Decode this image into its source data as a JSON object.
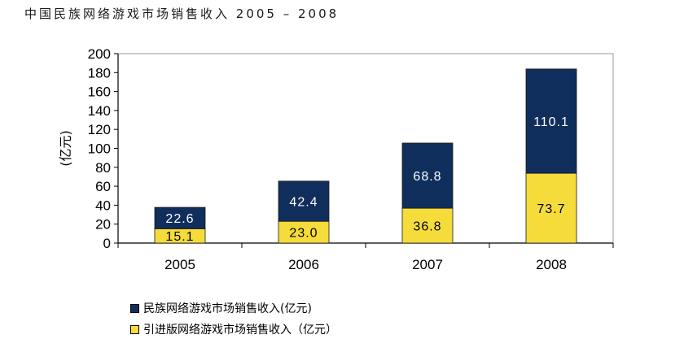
{
  "title": "中国民族网络游戏市场销售收入 2005 – 2008",
  "chart_data": {
    "type": "bar",
    "stacked": true,
    "categories": [
      "2005",
      "2006",
      "2007",
      "2008"
    ],
    "series": [
      {
        "name": "引进版网络游戏市场销售收入（亿元）",
        "values": [
          15.1,
          23.0,
          36.8,
          73.7
        ],
        "color": "#F5DC3A"
      },
      {
        "name": "民族网络游戏市场销售收入(亿元)",
        "values": [
          22.6,
          42.4,
          68.8,
          110.1
        ],
        "color": "#102E5C"
      }
    ],
    "value_labels": [
      [
        "15.1",
        "23.0",
        "36.8",
        "73.7"
      ],
      [
        "22.6",
        "42.4",
        "68.8",
        "110.1"
      ]
    ],
    "ylabel": "(亿元)",
    "ylim": [
      0,
      200
    ],
    "yticks": [
      "0",
      "20",
      "40",
      "60",
      "80",
      "100",
      "120",
      "140",
      "160",
      "180",
      "200"
    ],
    "grid": false,
    "legend_position": "bottom-left"
  },
  "legend": [
    {
      "label": "民族网络游戏市场销售收入(亿元)",
      "color": "#102E5C"
    },
    {
      "label": "引进版网络游戏市场销售收入（亿元）",
      "color": "#F5DC3A"
    }
  ]
}
